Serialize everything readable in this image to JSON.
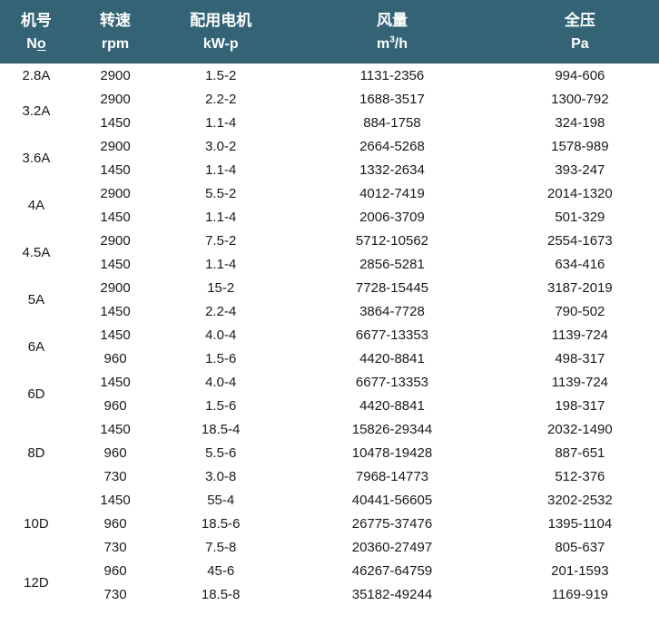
{
  "header": {
    "model": {
      "zh": "机号",
      "en_main": "N",
      "en_underlined": "o"
    },
    "speed": {
      "zh": "转速",
      "en": "rpm"
    },
    "motor": {
      "zh": "配用电机",
      "en": "kW-p"
    },
    "airflow": {
      "zh": "风量",
      "en_base": "m",
      "en_sup": "3",
      "en_rest": "/h"
    },
    "pressure": {
      "zh": "全压",
      "en": "Pa"
    }
  },
  "colors": {
    "header_bg": "#346376",
    "header_text": "#ffffff",
    "body_text": "#1a1a1a",
    "body_bg": "#ffffff"
  },
  "table": {
    "groups": [
      {
        "model": "2.8A",
        "rows": [
          {
            "rpm": "2900",
            "motor": "1.5-2",
            "airflow": "1131-2356",
            "pressure": "994-606"
          }
        ]
      },
      {
        "model": "3.2A",
        "rows": [
          {
            "rpm": "2900",
            "motor": "2.2-2",
            "airflow": "1688-3517",
            "pressure": "1300-792"
          },
          {
            "rpm": "1450",
            "motor": "1.1-4",
            "airflow": "884-1758",
            "pressure": "324-198"
          }
        ]
      },
      {
        "model": "3.6A",
        "rows": [
          {
            "rpm": "2900",
            "motor": "3.0-2",
            "airflow": "2664-5268",
            "pressure": "1578-989"
          },
          {
            "rpm": "1450",
            "motor": "1.1-4",
            "airflow": "1332-2634",
            "pressure": "393-247"
          }
        ]
      },
      {
        "model": "4A",
        "rows": [
          {
            "rpm": "2900",
            "motor": "5.5-2",
            "airflow": "4012-7419",
            "pressure": "2014-1320"
          },
          {
            "rpm": "1450",
            "motor": "1.1-4",
            "airflow": "2006-3709",
            "pressure": "501-329"
          }
        ]
      },
      {
        "model": "4.5A",
        "rows": [
          {
            "rpm": "2900",
            "motor": "7.5-2",
            "airflow": "5712-10562",
            "pressure": "2554-1673"
          },
          {
            "rpm": "1450",
            "motor": "1.1-4",
            "airflow": "2856-5281",
            "pressure": "634-416"
          }
        ]
      },
      {
        "model": "5A",
        "rows": [
          {
            "rpm": "2900",
            "motor": "15-2",
            "airflow": "7728-15445",
            "pressure": "3187-2019"
          },
          {
            "rpm": "1450",
            "motor": "2.2-4",
            "airflow": "3864-7728",
            "pressure": "790-502"
          }
        ]
      },
      {
        "model": "6A",
        "rows": [
          {
            "rpm": "1450",
            "motor": "4.0-4",
            "airflow": "6677-13353",
            "pressure": "1139-724"
          },
          {
            "rpm": "960",
            "motor": "1.5-6",
            "airflow": "4420-8841",
            "pressure": "498-317"
          }
        ]
      },
      {
        "model": "6D",
        "rows": [
          {
            "rpm": "1450",
            "motor": "4.0-4",
            "airflow": "6677-13353",
            "pressure": "1139-724"
          },
          {
            "rpm": "960",
            "motor": "1.5-6",
            "airflow": "4420-8841",
            "pressure": "198-317"
          }
        ]
      },
      {
        "model": "8D",
        "rows": [
          {
            "rpm": "1450",
            "motor": "18.5-4",
            "airflow": "15826-29344",
            "pressure": "2032-1490"
          },
          {
            "rpm": "960",
            "motor": "5.5-6",
            "airflow": "10478-19428",
            "pressure": "887-651"
          },
          {
            "rpm": "730",
            "motor": "3.0-8",
            "airflow": "7968-14773",
            "pressure": "512-376"
          }
        ]
      },
      {
        "model": "10D",
        "rows": [
          {
            "rpm": "1450",
            "motor": "55-4",
            "airflow": "40441-56605",
            "pressure": "3202-2532"
          },
          {
            "rpm": "960",
            "motor": "18.5-6",
            "airflow": "26775-37476",
            "pressure": "1395-1104"
          },
          {
            "rpm": "730",
            "motor": "7.5-8",
            "airflow": "20360-27497",
            "pressure": "805-637"
          }
        ]
      },
      {
        "model": "12D",
        "rows": [
          {
            "rpm": "960",
            "motor": "45-6",
            "airflow": "46267-64759",
            "pressure": "201-1593"
          },
          {
            "rpm": "730",
            "motor": "18.5-8",
            "airflow": "35182-49244",
            "pressure": "1169-919"
          }
        ]
      }
    ]
  }
}
